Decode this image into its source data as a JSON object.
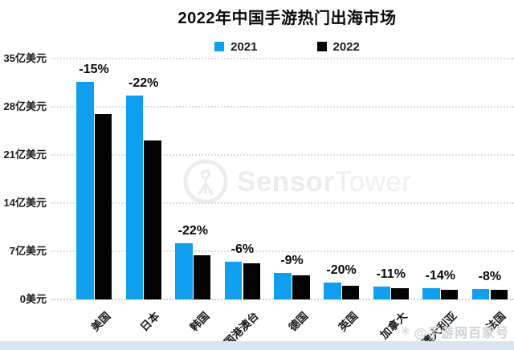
{
  "page": {
    "title": "2022年中国手游热门出海市场",
    "footer_strip_color": "#d9e5f0"
  },
  "legend": [
    {
      "label": "2021",
      "color": "#109fef"
    },
    {
      "label": "2022",
      "color": "#030303"
    }
  ],
  "watermark_center": {
    "brand_bold": "Sensor",
    "brand_light": "Tower",
    "logo": "sensortower-logo"
  },
  "watermark_corner": {
    "icon": "✳",
    "text": "@手游网百家号"
  },
  "chart_data": {
    "type": "bar",
    "title": "2022年中国手游热门出海市场",
    "categories": [
      "美国",
      "日本",
      "韩国",
      "中国港澳台",
      "德国",
      "英国",
      "加拿大",
      "澳大利亚",
      "法国"
    ],
    "series": [
      {
        "name": "2021",
        "color": "#109fef",
        "values": [
          31.6,
          29.6,
          8.2,
          5.5,
          3.9,
          2.5,
          1.85,
          1.65,
          1.55
        ]
      },
      {
        "name": "2022",
        "color": "#030303",
        "values": [
          26.9,
          23.1,
          6.4,
          5.2,
          3.55,
          2.0,
          1.65,
          1.42,
          1.42
        ]
      }
    ],
    "change_labels": [
      "-15%",
      "-22%",
      "-22%",
      "-6%",
      "-9%",
      "-20%",
      "-11%",
      "-14%",
      "-8%"
    ],
    "unit": "亿美元",
    "yticks": [
      {
        "value": 35,
        "label": "35亿美元"
      },
      {
        "value": 28,
        "label": "28亿美元"
      },
      {
        "value": 21,
        "label": "21亿美元"
      },
      {
        "value": 14,
        "label": "14亿美元"
      },
      {
        "value": 7,
        "label": "7亿美元"
      },
      {
        "value": 0,
        "label": "0美元"
      }
    ],
    "ylim": [
      0,
      35
    ],
    "grid": "horizontal-dotted",
    "legend_position": "top-center"
  }
}
